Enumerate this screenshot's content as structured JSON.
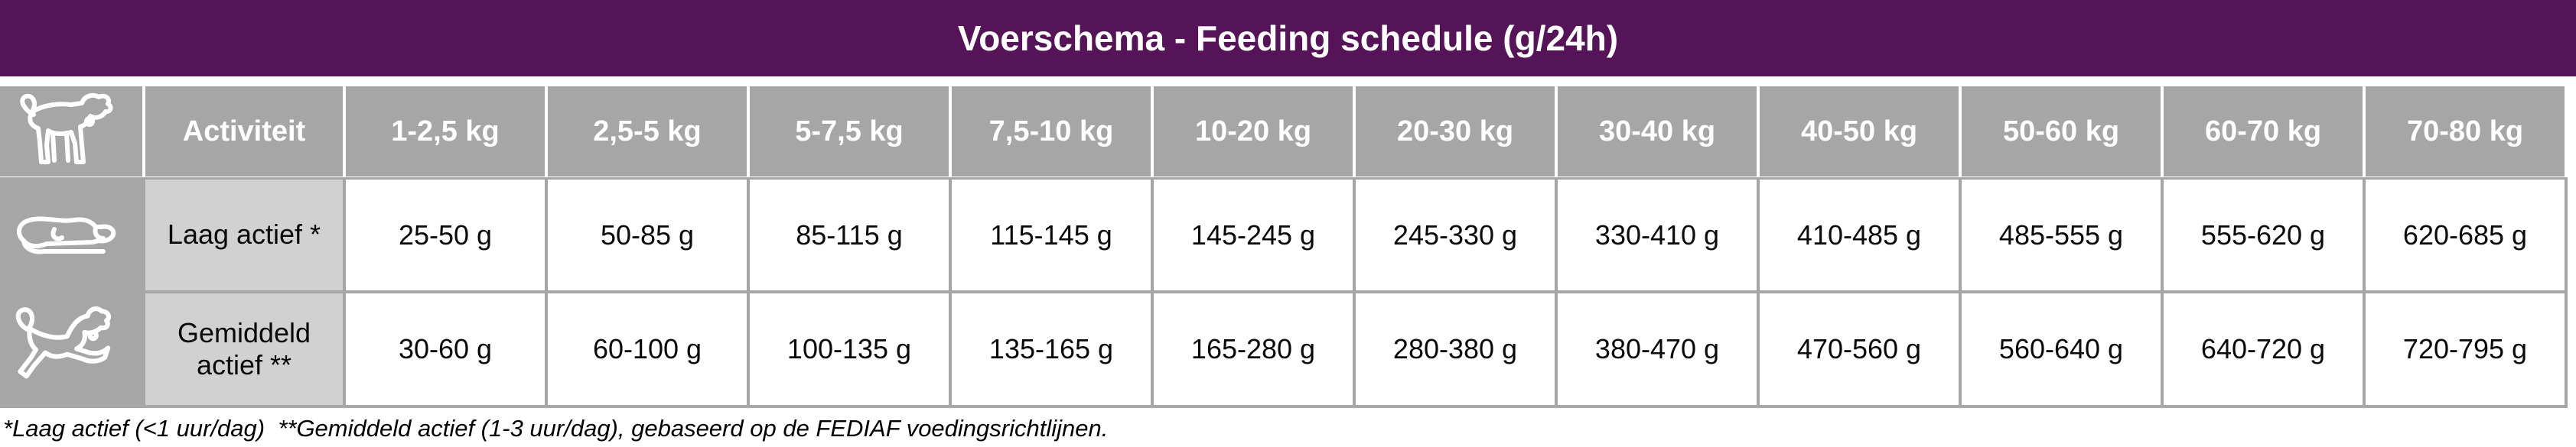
{
  "title": "Voerschema - Feeding schedule (g/24h)",
  "colors": {
    "title_bar_purple": "#561458",
    "header_gray": "#a6a6a6",
    "activity_label_gray": "#d1d1d1",
    "cell_white": "#ffffff",
    "header_text_white": "#ffffff",
    "body_text_black": "#0a0a0a"
  },
  "icons": {
    "corner": "standing-dog-icon",
    "row_low_active": "lying-dog-icon",
    "row_medium_active": "running-dog-icon"
  },
  "table": {
    "activity_header": "Activiteit",
    "weight_headers": [
      "1-2,5 kg",
      "2,5-5 kg",
      "5-7,5 kg",
      "7,5-10 kg",
      "10-20 kg",
      "20-30 kg",
      "30-40 kg",
      "40-50 kg",
      "50-60 kg",
      "60-70 kg",
      "70-80 kg"
    ],
    "rows": [
      {
        "icon": "lying-dog-icon",
        "label": "Laag actief *",
        "values": [
          "25-50 g",
          "50-85 g",
          "85-115 g",
          "115-145 g",
          "145-245 g",
          "245-330 g",
          "330-410 g",
          "410-485 g",
          "485-555 g",
          "555-620 g",
          "620-685 g"
        ]
      },
      {
        "icon": "running-dog-icon",
        "label": "Gemiddeld actief **",
        "values": [
          "30-60 g",
          "60-100 g",
          "100-135 g",
          "135-165 g",
          "165-280 g",
          "280-380 g",
          "380-470 g",
          "470-560 g",
          "560-640 g",
          "640-720 g",
          "720-795 g"
        ]
      }
    ]
  },
  "footnote": "*Laag actief (<1 uur/dag)  **Gemiddeld actief (1-3 uur/dag), gebaseerd op de FEDIAF voedingsrichtlijnen."
}
